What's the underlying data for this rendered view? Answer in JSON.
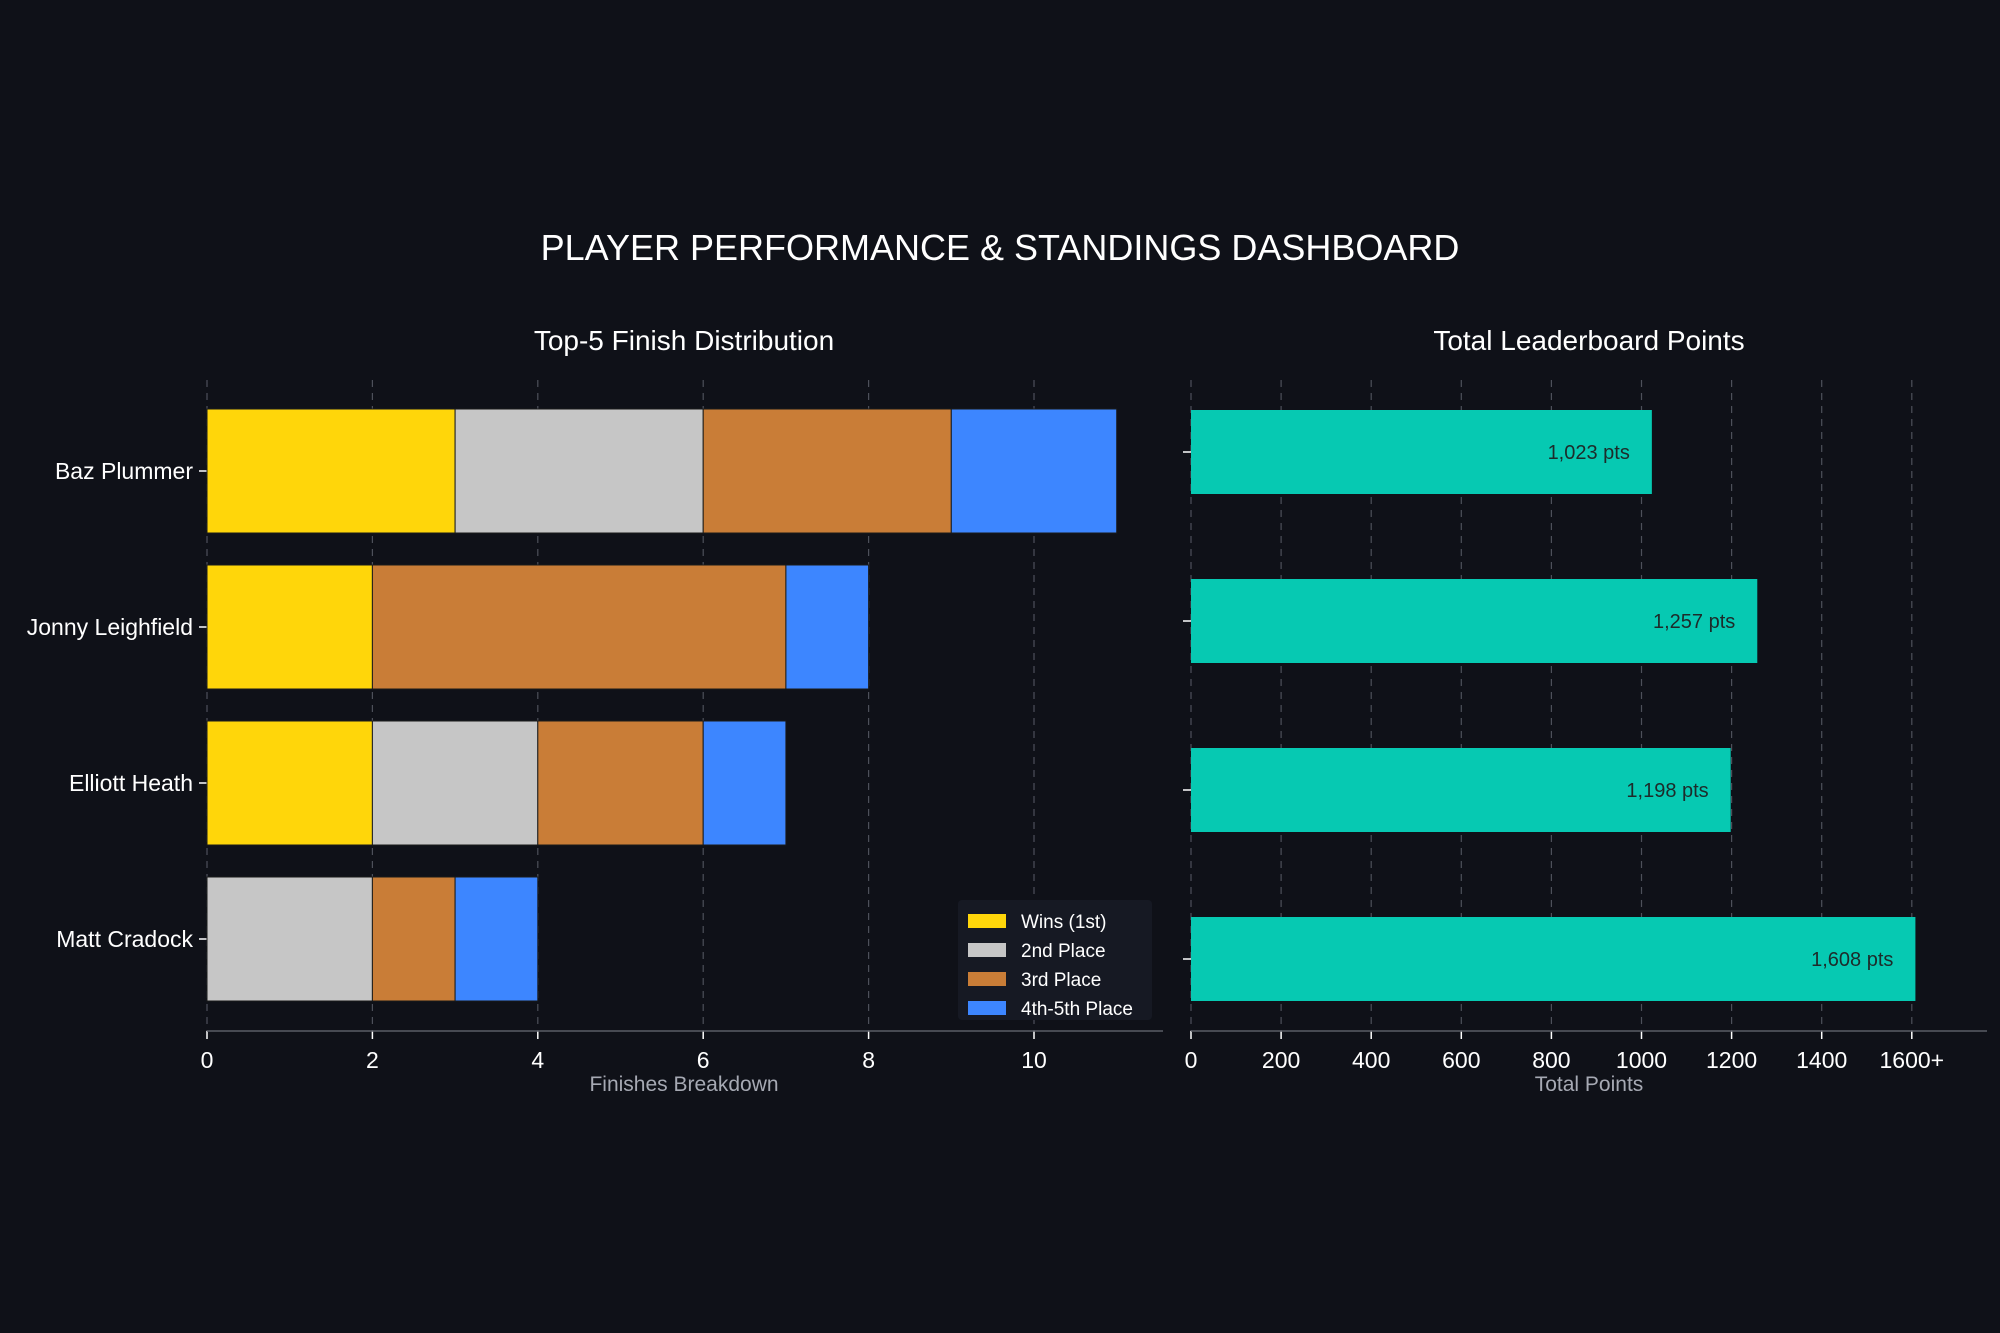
{
  "page": {
    "title": "PLAYER PERFORMANCE & STANDINGS DASHBOARD",
    "background": "#0f1118"
  },
  "chart_data": [
    {
      "type": "bar",
      "orientation": "horizontal",
      "stacked": true,
      "title": "Top-5 Finish Distribution",
      "xlabel": "Finishes Breakdown",
      "ylabel": "",
      "xlim": [
        0,
        11.6
      ],
      "xticks": [
        "0",
        "2",
        "4",
        "6",
        "8",
        "10"
      ],
      "grid": "vertical dashed",
      "legend_position": "bottom-right",
      "categories": [
        "Baz Plummer",
        "Jonny Leighfield",
        "Elliott Heath",
        "Matt Cradock"
      ],
      "series": [
        {
          "name": "Wins (1st)",
          "color": "#ffd60a",
          "values": [
            3,
            2,
            2,
            0
          ]
        },
        {
          "name": "2nd Place",
          "color": "#c6c6c6",
          "values": [
            3,
            0,
            2,
            2
          ]
        },
        {
          "name": "3rd Place",
          "color": "#c97d37",
          "values": [
            3,
            5,
            2,
            1
          ]
        },
        {
          "name": "4th-5th Place",
          "color": "#3d86ff",
          "values": [
            2,
            1,
            1,
            1
          ]
        }
      ]
    },
    {
      "type": "bar",
      "orientation": "horizontal",
      "title": "Total Leaderboard Points",
      "xlabel": "Total Points",
      "ylabel": "",
      "xlim": [
        0,
        1760
      ],
      "xticks": [
        "0",
        "200",
        "400",
        "600",
        "800",
        "1000",
        "1200",
        "1400",
        "1600+"
      ],
      "grid": "vertical dashed",
      "categories": [
        "Baz Plummer",
        "Jonny Leighfield",
        "Elliott Heath",
        "Matt Cradock"
      ],
      "values": [
        1023,
        1257,
        1198,
        1608
      ],
      "value_labels": [
        "1,023 pts",
        "1,257 pts",
        "1,198 pts",
        "1,608 pts"
      ],
      "color": "#06c9b2"
    }
  ]
}
